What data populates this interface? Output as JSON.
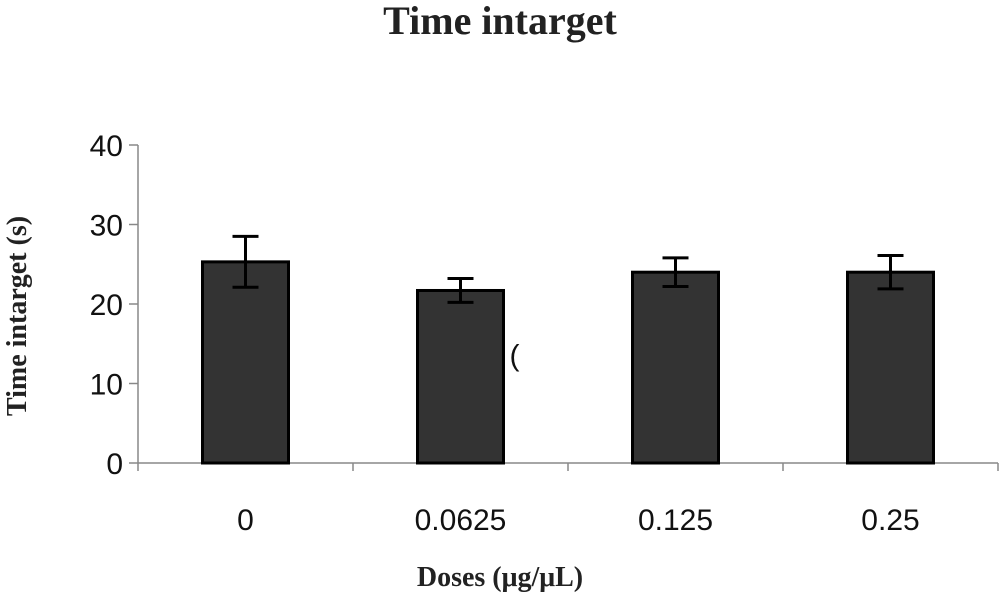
{
  "chart_data": {
    "type": "bar",
    "title": "Time intarget",
    "xlabel": "Doses (μg/μL)",
    "ylabel": "Time intarget (s)",
    "categories": [
      "0",
      "0.0625",
      "0.125",
      "0.25"
    ],
    "values": [
      25.3,
      21.7,
      24.0,
      24.0
    ],
    "error": [
      3.2,
      1.5,
      1.8,
      2.1
    ],
    "ylim": [
      0,
      40
    ],
    "yticks": [
      0,
      10,
      20,
      30,
      40
    ],
    "grid": false,
    "bar_color": "#333333",
    "annotations": [
      {
        "text": "(",
        "x": "0.0625",
        "y": 13.5
      }
    ]
  }
}
